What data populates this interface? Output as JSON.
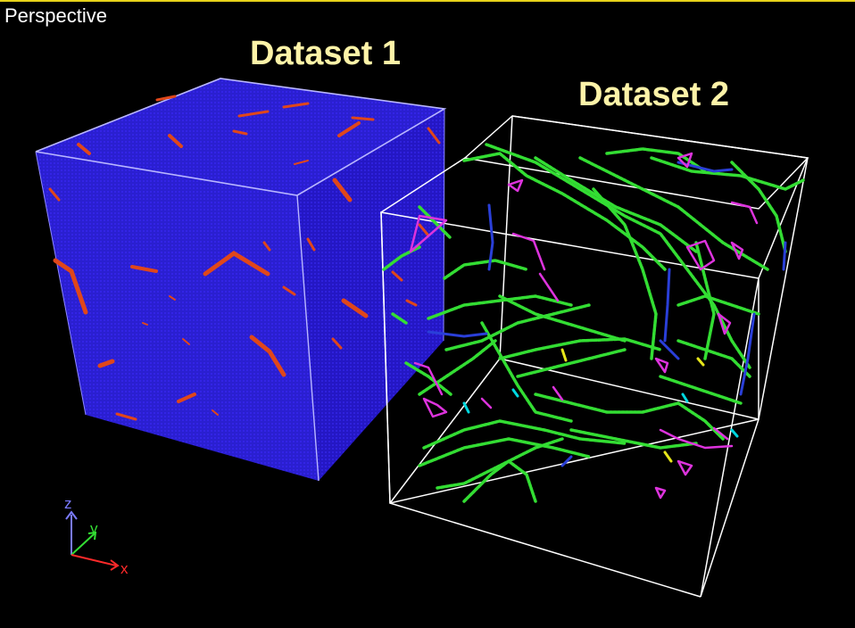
{
  "viewport": {
    "title": "Perspective",
    "accent_color": "#e7d21a"
  },
  "datasets": [
    {
      "label": "Dataset 1",
      "style": "solid-voxel-cube",
      "base_color": "#2a1fd0",
      "defect_color": "#e0471a",
      "label_color": "#fdf3a8"
    },
    {
      "label": "Dataset 2",
      "style": "dislocation-lines-wireframe",
      "line_colors": [
        "#33dd33",
        "#dd33dd",
        "#2a3fd8",
        "#00d8e0",
        "#e6e61a"
      ],
      "label_color": "#fdf3a8"
    }
  ],
  "axes": {
    "x": {
      "label": "x",
      "color": "#ff2a2a"
    },
    "y": {
      "label": "y",
      "color": "#33dd33"
    },
    "z": {
      "label": "z",
      "color": "#7a7aff"
    }
  }
}
